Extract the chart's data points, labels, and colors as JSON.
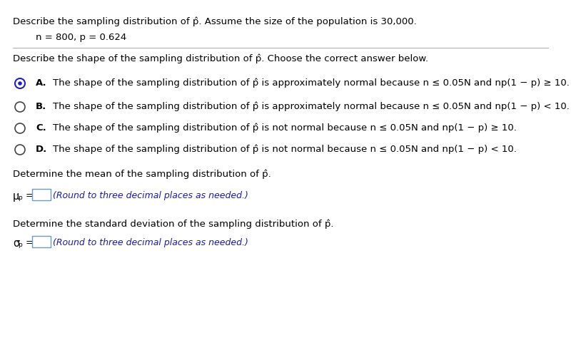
{
  "title_line": "Describe the sampling distribution of p̂. Assume the size of the population is 30,000.",
  "params_line": "n = 800, p = 0.624",
  "question_line": "Describe the shape of the sampling distribution of p̂. Choose the correct answer below.",
  "options": [
    {
      "label": "A.",
      "selected": true,
      "text": "The shape of the sampling distribution of p̂ is approximately normal because n ≤ 0.05N and np(1 − p) ≥ 10."
    },
    {
      "label": "B.",
      "selected": false,
      "text": "The shape of the sampling distribution of p̂ is approximately normal because n ≤ 0.05N and np(1 − p) < 10."
    },
    {
      "label": "C.",
      "selected": false,
      "text": "The shape of the sampling distribution of p̂ is not normal because n ≤ 0.05N and np(1 − p) ≥ 10."
    },
    {
      "label": "D.",
      "selected": false,
      "text": "The shape of the sampling distribution of p̂ is not normal because n ≤ 0.05N and np(1 − p) < 10."
    }
  ],
  "mean_section_title": "Determine the mean of the sampling distribution of p̂.",
  "mean_label": "μ",
  "std_section_title": "Determine the standard deviation of the sampling distribution of p̂.",
  "std_label": "σ",
  "hint": "(Round to three decimal places as needed.)",
  "bg_color": "#ffffff",
  "text_color": "#000000",
  "hint_color": "#1a1aaa",
  "box_edge_color": "#6699cc",
  "separator_color": "#aaaaaa",
  "radio_selected_outer": "#2222bb",
  "radio_selected_inner": "#2222bb",
  "radio_unselected": "#444444",
  "font_size": 9.5
}
